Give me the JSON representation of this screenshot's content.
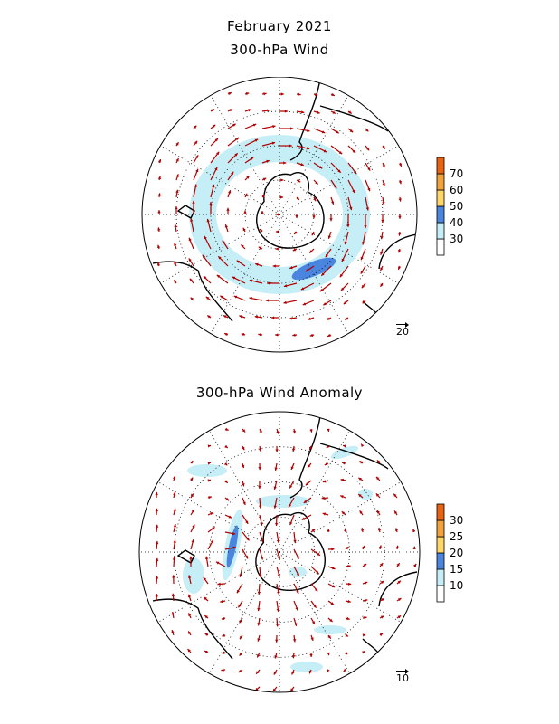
{
  "titles": {
    "main": "February 2021",
    "top": "300-hPa Wind",
    "bottom": "300-hPa Wind Anomaly"
  },
  "colors": {
    "arrow": "#b00000",
    "coast": "#000000",
    "shade_levels_top": [
      "#ffffff",
      "#c5eef6",
      "#4a86df",
      "#ffd766",
      "#f2a23a",
      "#e8620f"
    ],
    "shade_levels_bottom": [
      "#ffffff",
      "#c5eef6",
      "#4a86df",
      "#ffd766",
      "#f2a23a",
      "#e8620f"
    ]
  },
  "colorbar_top": {
    "labels": [
      "30",
      "40",
      "50",
      "60",
      "70"
    ]
  },
  "colorbar_bottom": {
    "labels": [
      "10",
      "15",
      "20",
      "25",
      "30"
    ]
  },
  "reference_vectors": {
    "top": "20",
    "bottom": "10"
  },
  "map": {
    "projection": "south-polar-stereographic",
    "graticule": "dotted",
    "vector_field_top": "circumpolar westerly jet",
    "vector_field_bottom": "anomaly wind vectors"
  }
}
